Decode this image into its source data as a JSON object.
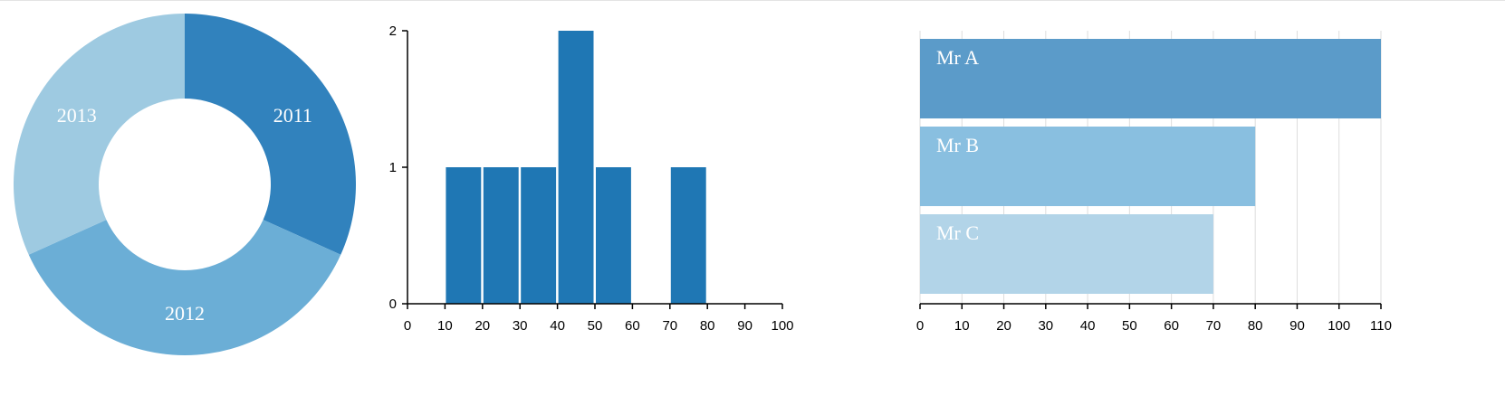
{
  "chart_data": [
    {
      "type": "pie",
      "style": "donut",
      "slices": [
        {
          "label": "2011",
          "value": 1,
          "color": "#3182bd"
        },
        {
          "label": "2012",
          "value": 1.15,
          "color": "#6baed6"
        },
        {
          "label": "2013",
          "value": 1,
          "color": "#9ecae1"
        }
      ]
    },
    {
      "type": "bar",
      "subtype": "histogram",
      "bin_width": 10,
      "bins": [
        {
          "x0": 10,
          "x1": 20,
          "count": 1
        },
        {
          "x0": 20,
          "x1": 30,
          "count": 1
        },
        {
          "x0": 30,
          "x1": 40,
          "count": 1
        },
        {
          "x0": 40,
          "x1": 50,
          "count": 2
        },
        {
          "x0": 50,
          "x1": 60,
          "count": 1
        },
        {
          "x0": 70,
          "x1": 80,
          "count": 1
        }
      ],
      "xlim": [
        0,
        100
      ],
      "ylim": [
        0,
        2
      ],
      "x_ticks": [
        "0",
        "10",
        "20",
        "30",
        "40",
        "50",
        "60",
        "70",
        "80",
        "90",
        "100"
      ],
      "y_ticks": [
        "0",
        "1",
        "2"
      ],
      "color": "#1f77b4",
      "grid": false
    },
    {
      "type": "bar",
      "orientation": "horizontal",
      "categories": [
        "Mr A",
        "Mr B",
        "Mr C"
      ],
      "values": [
        110,
        80,
        70
      ],
      "colors": [
        "#5b9bc9",
        "#89bfe0",
        "#b2d4e8"
      ],
      "xlim": [
        0,
        110
      ],
      "x_ticks": [
        "0",
        "10",
        "20",
        "30",
        "40",
        "50",
        "60",
        "70",
        "80",
        "90",
        "100",
        "110"
      ],
      "grid": true
    }
  ]
}
